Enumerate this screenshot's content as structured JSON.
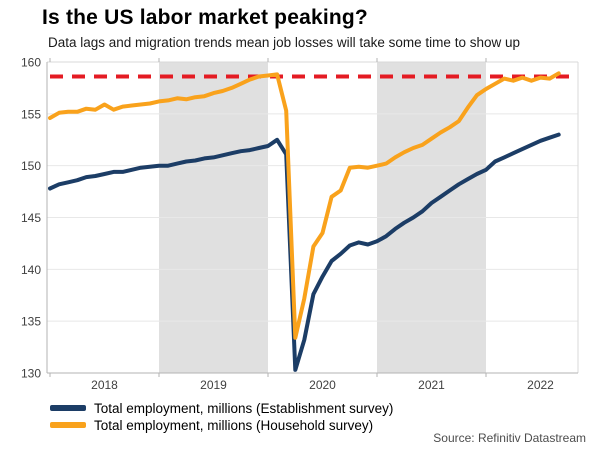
{
  "header": {
    "title": "Is the US labor market peaking?",
    "subtitle": "Data lags and migration trends mean job losses will take some time to show up"
  },
  "source": "Source: Refinitiv Datastream",
  "colors": {
    "title": "#000000",
    "subtitle": "#1a1a1a",
    "establishment_line": "#1c3d66",
    "household_line": "#f9a21c",
    "reference_line": "#e41b23",
    "recession_band": "#e0e0e0",
    "gridline": "#e8e8e8",
    "axis": "#b3b3b3",
    "plot_border": "#d9d9d9",
    "tick_label": "#404040",
    "source_text": "#4d4d4d"
  },
  "chart_data": {
    "type": "line",
    "title": "Is the US labor market peaking?",
    "subtitle": "Data lags and migration trends mean job losses will take some time to show up",
    "x_start_year": 2018,
    "x_frequency": "monthly",
    "x_range": [
      "2018-01",
      "2022-09"
    ],
    "x_tick_labels": [
      "2018",
      "2019",
      "2020",
      "2021",
      "2022"
    ],
    "y_ticks": [
      130,
      135,
      140,
      145,
      150,
      155,
      160
    ],
    "ylim": [
      130,
      160
    ],
    "grid": true,
    "legend_position": "bottom-left",
    "shaded_year_bands": [
      "2019",
      "2021"
    ],
    "reference_line": {
      "value": 158.6,
      "style": "dashed",
      "color": "#e41b23"
    },
    "series": [
      {
        "id": "establishment",
        "name": "Total employment, millions (Establishment survey)",
        "color": "#1c3d66",
        "values": [
          147.8,
          148.2,
          148.4,
          148.6,
          148.9,
          149.0,
          149.2,
          149.4,
          149.4,
          149.6,
          149.8,
          149.9,
          150.0,
          150.0,
          150.2,
          150.4,
          150.5,
          150.7,
          150.8,
          151.0,
          151.2,
          151.4,
          151.5,
          151.7,
          151.9,
          152.5,
          151.1,
          130.3,
          133.2,
          137.6,
          139.3,
          140.8,
          141.5,
          142.3,
          142.6,
          142.4,
          142.7,
          143.2,
          143.9,
          144.5,
          145.0,
          145.6,
          146.4,
          147.0,
          147.6,
          148.2,
          148.7,
          149.2,
          149.6,
          150.4,
          150.8,
          151.2,
          151.6,
          152.0,
          152.4,
          152.7,
          153.0
        ]
      },
      {
        "id": "household",
        "name": "Total employment, millions (Household survey)",
        "color": "#f9a21c",
        "values": [
          154.6,
          155.1,
          155.2,
          155.2,
          155.5,
          155.4,
          155.9,
          155.4,
          155.7,
          155.8,
          155.9,
          156.0,
          156.2,
          156.3,
          156.5,
          156.4,
          156.6,
          156.7,
          157.0,
          157.2,
          157.5,
          157.9,
          158.3,
          158.6,
          158.7,
          158.8,
          155.3,
          133.4,
          137.2,
          142.2,
          143.5,
          147.0,
          147.6,
          149.8,
          149.9,
          149.8,
          150.0,
          150.2,
          150.8,
          151.3,
          151.7,
          152.0,
          152.6,
          153.2,
          153.7,
          154.3,
          155.6,
          156.8,
          157.4,
          157.9,
          158.4,
          158.2,
          158.5,
          158.2,
          158.5,
          158.4,
          158.9
        ]
      }
    ]
  },
  "legend": {
    "items": [
      {
        "label": "Total employment, millions (Establishment survey)",
        "color": "#1c3d66"
      },
      {
        "label": "Total employment, millions (Household survey)",
        "color": "#f9a21c"
      }
    ]
  }
}
